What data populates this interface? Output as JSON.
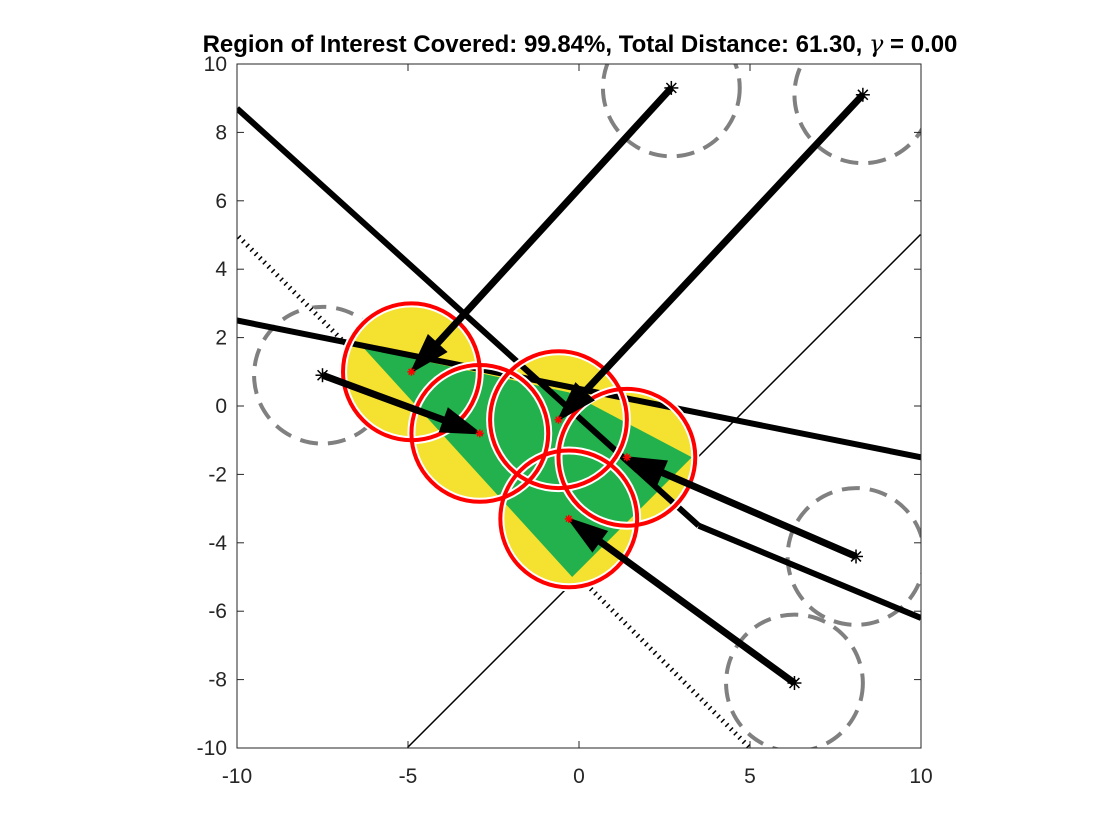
{
  "chart_data": {
    "type": "scatter",
    "title_prefix": "Region of Interest Covered: 99.84%, Total Distance: 61.30, ",
    "title_symbol": "γ",
    "title_suffix": " = 0.00",
    "xlim": [
      -10,
      10
    ],
    "ylim": [
      -10,
      10
    ],
    "xticks": [
      -10,
      -5,
      0,
      5,
      10
    ],
    "yticks": [
      -10,
      -8,
      -6,
      -4,
      -2,
      0,
      2,
      4,
      6,
      8,
      10
    ],
    "grid": false,
    "sensor_radius": 2,
    "region_of_interest": {
      "color": "#22b14c",
      "vertices": [
        [
          -6.3,
          1.7
        ],
        [
          -0.3,
          0.4
        ],
        [
          3.3,
          -1.5
        ],
        [
          -0.2,
          -5.0
        ]
      ]
    },
    "thick_lines": [
      {
        "from": [
          -10,
          8.7
        ],
        "to": [
          3.5,
          -3.5
        ]
      },
      {
        "from": [
          -10,
          2.5
        ],
        "to": [
          10,
          -1.5
        ]
      },
      {
        "from": [
          3.5,
          -3.5
        ],
        "to": [
          10,
          -6.2
        ]
      }
    ],
    "hatched_lines": [
      {
        "from": [
          -10,
          5
        ],
        "to": [
          5,
          -10
        ]
      },
      {
        "from": [
          -5,
          -10
        ],
        "to": [
          10,
          5
        ]
      }
    ],
    "initial_positions": [
      [
        2.7,
        9.3
      ],
      [
        8.3,
        9.1
      ],
      [
        -7.5,
        0.9
      ],
      [
        8.1,
        -4.4
      ],
      [
        6.3,
        -8.1
      ]
    ],
    "final_positions": [
      [
        -4.9,
        1.0
      ],
      [
        -0.6,
        -0.4
      ],
      [
        -2.9,
        -0.8
      ],
      [
        1.4,
        -1.5
      ],
      [
        -0.3,
        -3.3
      ]
    ],
    "colors": {
      "sensor_fill": "#f5e12f",
      "sensor_edge": "#ff0000",
      "initial_circle": "#808080",
      "arrows": "#000000"
    }
  }
}
